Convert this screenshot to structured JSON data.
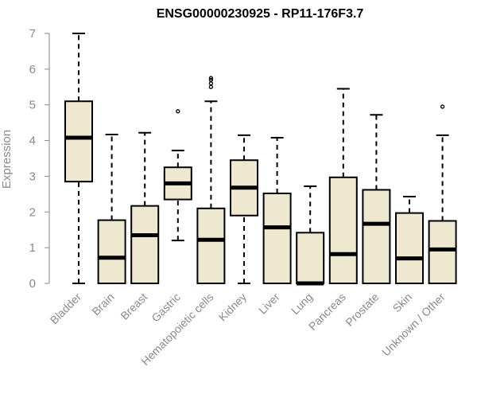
{
  "chart_data": {
    "type": "boxplot",
    "title": "ENSG00000230925 - RP11-176F3.7",
    "ylabel": "Expression",
    "xlabel": "",
    "ylim": [
      0,
      7
    ],
    "yticks": [
      0,
      1,
      2,
      3,
      4,
      5,
      6,
      7
    ],
    "grid": false,
    "legend": "none",
    "box_fill": "#efe8d0",
    "box_stroke": "#000000",
    "categories": [
      "Bladder",
      "Brain",
      "Breast",
      "Gastric",
      "Hematopoietic cells",
      "Kidney",
      "Liver",
      "Lung",
      "Pancreas",
      "Prostate",
      "Skin",
      "Unknown / Other"
    ],
    "boxes": [
      {
        "min": 0.0,
        "q1": 2.85,
        "median": 4.08,
        "q3": 5.1,
        "max": 7.0,
        "outliers": []
      },
      {
        "min": 0.0,
        "q1": 0.0,
        "median": 0.72,
        "q3": 1.77,
        "max": 4.17,
        "outliers": []
      },
      {
        "min": 0.0,
        "q1": 0.0,
        "median": 1.35,
        "q3": 2.17,
        "max": 4.22,
        "outliers": []
      },
      {
        "min": 1.2,
        "q1": 2.35,
        "median": 2.8,
        "q3": 3.25,
        "max": 3.72,
        "outliers": [
          4.82
        ]
      },
      {
        "min": 0.0,
        "q1": 0.0,
        "median": 1.22,
        "q3": 2.1,
        "max": 5.1,
        "outliers": [
          5.5,
          5.6,
          5.7,
          5.75
        ]
      },
      {
        "min": 0.0,
        "q1": 1.9,
        "median": 2.68,
        "q3": 3.45,
        "max": 4.15,
        "outliers": []
      },
      {
        "min": 0.0,
        "q1": 0.0,
        "median": 1.57,
        "q3": 2.52,
        "max": 4.08,
        "outliers": []
      },
      {
        "min": 0.0,
        "q1": 0.0,
        "median": 0.0,
        "q3": 1.42,
        "max": 2.72,
        "outliers": []
      },
      {
        "min": 0.0,
        "q1": 0.0,
        "median": 0.82,
        "q3": 2.97,
        "max": 5.45,
        "outliers": []
      },
      {
        "min": 0.0,
        "q1": 0.0,
        "median": 1.67,
        "q3": 2.62,
        "max": 4.72,
        "outliers": []
      },
      {
        "min": 0.0,
        "q1": 0.0,
        "median": 0.7,
        "q3": 1.97,
        "max": 2.43,
        "outliers": []
      },
      {
        "min": 0.0,
        "q1": 0.0,
        "median": 0.95,
        "q3": 1.75,
        "max": 4.15,
        "outliers": [
          4.95
        ]
      }
    ]
  }
}
